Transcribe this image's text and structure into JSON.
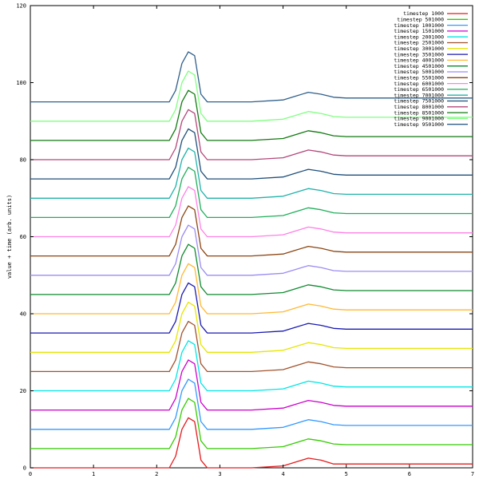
{
  "chart_data": {
    "type": "line",
    "title": "",
    "xlabel": "",
    "ylabel": "value + time (arb. units)",
    "xlim": [
      0,
      7
    ],
    "ylim": [
      0,
      120
    ],
    "x_ticks": [
      0,
      1,
      2,
      3,
      4,
      5,
      6,
      7
    ],
    "y_ticks": [
      0,
      20,
      40,
      60,
      80,
      100,
      120
    ],
    "legend_placement": "top-right",
    "grid": false,
    "x": [
      0,
      2.2,
      2.3,
      2.4,
      2.5,
      2.6,
      2.7,
      2.8,
      3.0,
      3.5,
      4.0,
      4.2,
      4.4,
      4.6,
      4.8,
      5.0,
      6.0,
      7.0
    ],
    "series": [
      {
        "name": "timestep 1000",
        "color": "#e41a1c",
        "values": [
          0,
          0,
          3,
          10,
          13,
          12,
          2,
          0,
          0,
          0,
          0.5,
          1.5,
          2.5,
          2,
          1,
          1,
          1,
          1
        ]
      },
      {
        "name": "timestep 501000",
        "color": "#33cc00",
        "values": [
          5,
          5,
          8,
          15,
          18,
          17,
          7,
          5,
          5,
          5,
          5.5,
          6.5,
          7.5,
          7,
          6.2,
          6,
          6,
          6
        ]
      },
      {
        "name": "timestep 1001000",
        "color": "#3399ff",
        "values": [
          10,
          10,
          13,
          20,
          23,
          22,
          12,
          10,
          10,
          10,
          10.5,
          11.5,
          12.5,
          12,
          11.2,
          11,
          11,
          11
        ]
      },
      {
        "name": "timestep 1501000",
        "color": "#cc00cc",
        "values": [
          15,
          15,
          18,
          25,
          28,
          27,
          17,
          15,
          15,
          15,
          15.5,
          16.5,
          17.5,
          17,
          16.2,
          16,
          16,
          16
        ]
      },
      {
        "name": "timestep 2001000",
        "color": "#00e6e6",
        "values": [
          20,
          20,
          23,
          30,
          33,
          32,
          22,
          20,
          20,
          20,
          20.5,
          21.5,
          22.5,
          22,
          21.2,
          21,
          21,
          21
        ]
      },
      {
        "name": "timestep 2501000",
        "color": "#a0522d",
        "values": [
          25,
          25,
          28,
          35,
          38,
          37,
          27,
          25,
          25,
          25,
          25.5,
          26.5,
          27.5,
          27,
          26.2,
          26,
          26,
          26
        ]
      },
      {
        "name": "timestep 3001000",
        "color": "#e6e600",
        "values": [
          30,
          30,
          33,
          40,
          43,
          42,
          32,
          30,
          30,
          30,
          30.5,
          31.5,
          32.5,
          32,
          31.2,
          31,
          31,
          31
        ]
      },
      {
        "name": "timestep 3501000",
        "color": "#1a1ab3",
        "values": [
          35,
          35,
          38,
          45,
          48,
          47,
          37,
          35,
          35,
          35,
          35.5,
          36.5,
          37.5,
          37,
          36.2,
          36,
          36,
          36
        ]
      },
      {
        "name": "timestep 4001000",
        "color": "#ffb833",
        "values": [
          40,
          40,
          43,
          50,
          53,
          52,
          42,
          40,
          40,
          40,
          40.5,
          41.5,
          42.5,
          42,
          41.2,
          41,
          41,
          41
        ]
      },
      {
        "name": "timestep 4501000",
        "color": "#0f8a2e",
        "values": [
          45,
          45,
          48,
          55,
          58,
          57,
          47,
          45,
          45,
          45,
          45.5,
          46.5,
          47.5,
          47,
          46.2,
          46,
          46,
          46
        ]
      },
      {
        "name": "timestep 5001000",
        "color": "#9b8cf2",
        "values": [
          50,
          50,
          53,
          60,
          63,
          62,
          52,
          50,
          50,
          50,
          50.5,
          51.5,
          52.5,
          52,
          51.2,
          51,
          51,
          51
        ]
      },
      {
        "name": "timestep 5501000",
        "color": "#8b4513",
        "values": [
          55,
          55,
          58,
          65,
          68,
          67,
          57,
          55,
          55,
          55,
          55.5,
          56.5,
          57.5,
          57,
          56.2,
          56,
          56,
          56
        ]
      },
      {
        "name": "timestep 6001000",
        "color": "#ff80e6",
        "values": [
          60,
          60,
          63,
          70,
          73,
          72,
          62,
          60,
          60,
          60,
          60.5,
          61.5,
          62.5,
          62,
          61.2,
          61,
          61,
          61
        ]
      },
      {
        "name": "timestep 6501000",
        "color": "#1fae5a",
        "values": [
          65,
          65,
          68,
          75,
          78,
          77,
          67,
          65,
          65,
          65,
          65.5,
          66.5,
          67.5,
          67,
          66.2,
          66,
          66,
          66
        ]
      },
      {
        "name": "timestep 7001000",
        "color": "#20b2aa",
        "values": [
          70,
          70,
          73,
          80,
          83,
          82,
          72,
          70,
          70,
          70,
          70.5,
          71.5,
          72.5,
          72,
          71.2,
          71,
          71,
          71
        ]
      },
      {
        "name": "timestep 7501000",
        "color": "#1f4e79",
        "values": [
          75,
          75,
          78,
          85,
          88,
          87,
          77,
          75,
          75,
          75,
          75.5,
          76.5,
          77.5,
          77,
          76.2,
          76,
          76,
          76
        ]
      },
      {
        "name": "timestep 8001000",
        "color": "#b3477a",
        "values": [
          80,
          80,
          83,
          90,
          93,
          92,
          82,
          80,
          80,
          80,
          80.5,
          81.5,
          82.5,
          82,
          81.2,
          81,
          81,
          81
        ]
      },
      {
        "name": "timestep 8501000",
        "color": "#117a11",
        "values": [
          85,
          85,
          88,
          95,
          98,
          97,
          87,
          85,
          85,
          85,
          85.5,
          86.5,
          87.5,
          87,
          86.2,
          86,
          86,
          86
        ]
      },
      {
        "name": "timestep 9001000",
        "color": "#80ff80",
        "values": [
          90,
          90,
          93,
          100,
          103,
          102,
          92,
          90,
          90,
          90,
          90.5,
          91.5,
          92.5,
          92,
          91.2,
          91,
          91,
          91
        ]
      },
      {
        "name": "timestep 9501000",
        "color": "#2f5f8a",
        "values": [
          95,
          95,
          98,
          105,
          108,
          107,
          97,
          95,
          95,
          95,
          95.5,
          96.5,
          97.5,
          97,
          96.2,
          96,
          96,
          96
        ]
      }
    ]
  }
}
